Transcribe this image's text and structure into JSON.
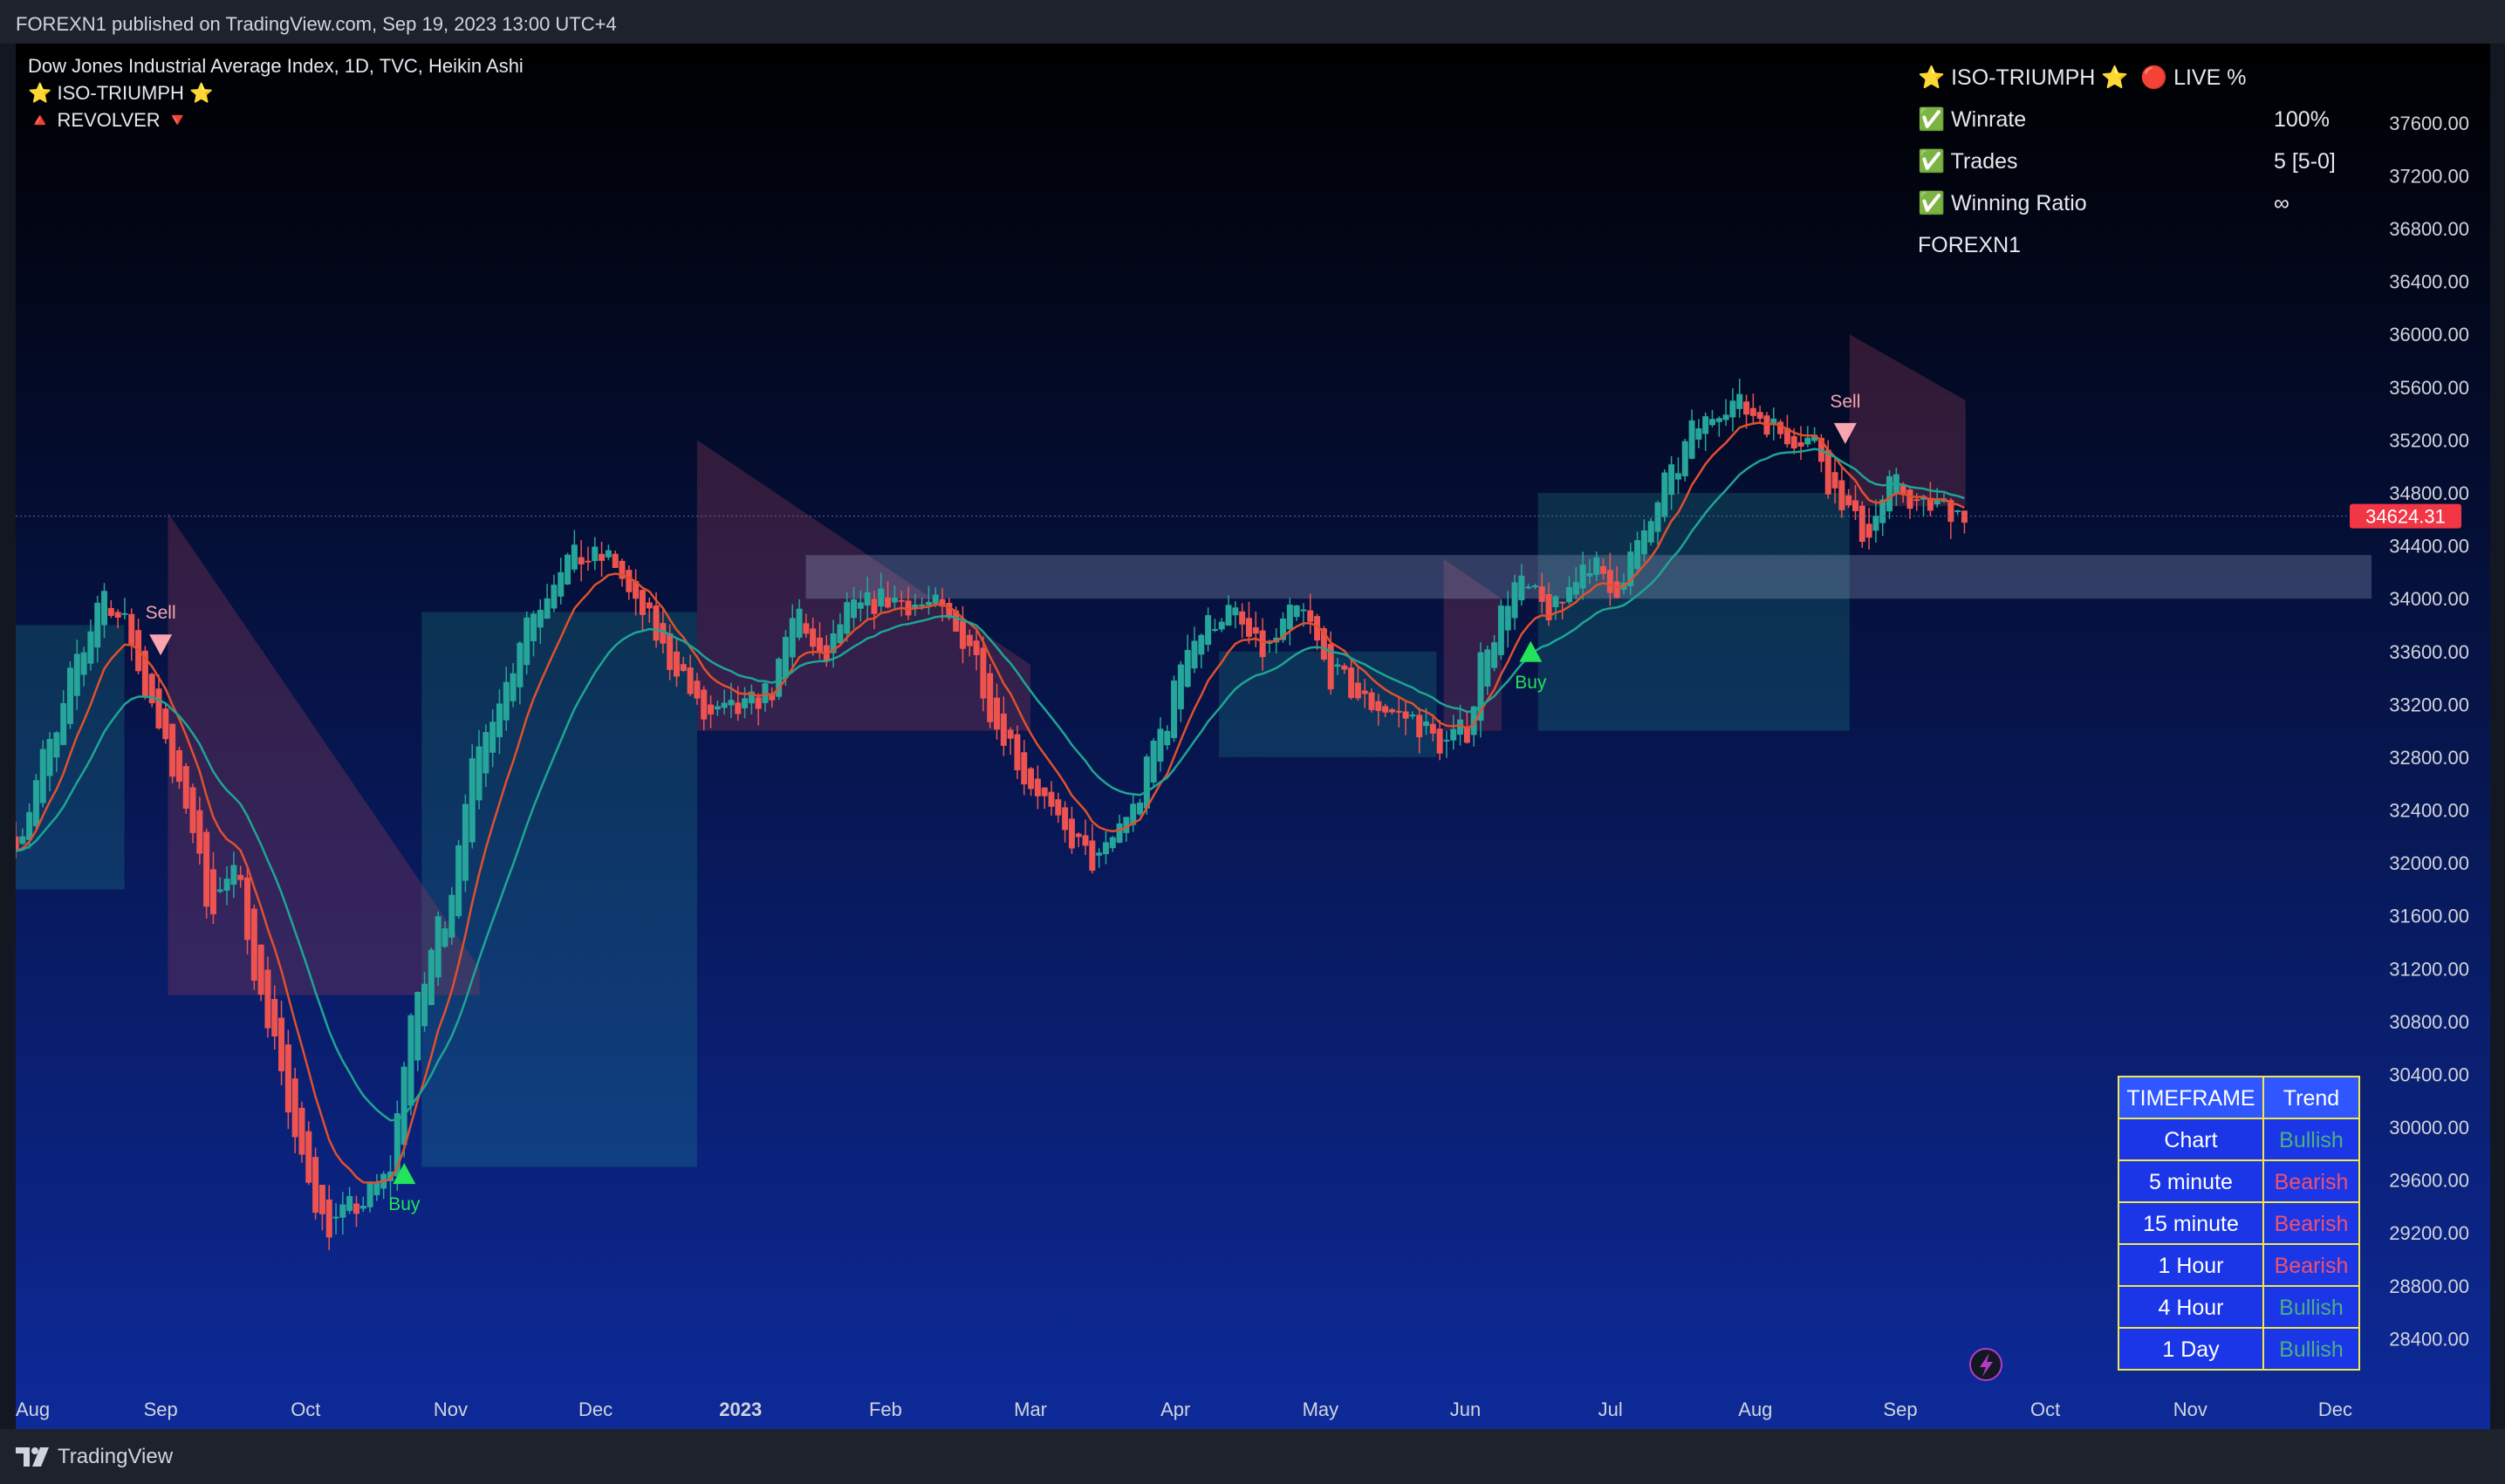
{
  "publish_line": "FOREXN1 published on TradingView.com, Sep 19, 2023 13:00 UTC+4",
  "legend": {
    "symbol_line": "Dow Jones Industrial Average Index, 1D, TVC, Heikin Ashi",
    "indicator1": "⭐ ISO-TRIUMPH ⭐",
    "indicator2": "🔺 REVOLVER 🔻"
  },
  "stats_panel": {
    "title_left": "⭐ ISO-TRIUMPH ⭐",
    "title_right": "🔴 LIVE %",
    "rows": [
      {
        "label": "✅ Winrate",
        "value": "100%"
      },
      {
        "label": "✅ Trades",
        "value": "5 [5-0]"
      },
      {
        "label": "✅ Winning Ratio",
        "value": "∞"
      }
    ],
    "footer": "FOREXN1"
  },
  "trend_table": {
    "headers": [
      "TIMEFRAME",
      "Trend"
    ],
    "rows": [
      {
        "timeframe": "Chart",
        "trend": "Bullish"
      },
      {
        "timeframe": "5 minute",
        "trend": "Bearish"
      },
      {
        "timeframe": "15 minute",
        "trend": "Bearish"
      },
      {
        "timeframe": "1 Hour",
        "trend": "Bearish"
      },
      {
        "timeframe": "4 Hour",
        "trend": "Bullish"
      },
      {
        "timeframe": "1 Day",
        "trend": "Bullish"
      }
    ]
  },
  "colors": {
    "bull": "#26a69a",
    "bear": "#ef5350",
    "buy_marker": "#22e35a",
    "sell_marker": "#f8a5b0",
    "fast_ma": "#e0502d",
    "slow_ma": "#1ea593",
    "bg_top": "#000000",
    "bg_bottom": "#0d2a99",
    "price_tag": "#f23645",
    "table_border": "#f0e74a",
    "table_fill": "#1b36e6",
    "table_header_fill": "#3057ff"
  },
  "brand": "TradingView",
  "chart_data": {
    "type": "candlestick",
    "title": "Dow Jones Industrial Average Index, 1D, TVC, Heikin Ashi",
    "x_axis": {
      "labels": [
        "Aug",
        "Sep",
        "Oct",
        "Nov",
        "Dec",
        "2023",
        "Feb",
        "Mar",
        "Apr",
        "May",
        "Jun",
        "Jul",
        "Aug",
        "Sep",
        "Oct",
        "Nov",
        "Dec"
      ],
      "label_months": [
        0,
        1,
        2,
        3,
        4,
        5,
        6,
        7,
        8,
        9,
        10,
        11,
        12,
        13,
        14,
        15,
        16
      ],
      "start": "2022-08-01",
      "end": "2023-12-01"
    },
    "y_axis": {
      "ticks": [
        28400,
        28800,
        29200,
        29600,
        30000,
        30400,
        30800,
        31200,
        31600,
        32000,
        32400,
        32800,
        33200,
        33600,
        34000,
        34400,
        34800,
        35200,
        35600,
        36000,
        36400,
        36800,
        37200,
        37600
      ],
      "range": [
        28000,
        38200
      ]
    },
    "last_price": "34624.31",
    "last_value": 34624.31,
    "price_path_months": [
      [
        0.0,
        32200
      ],
      [
        0.25,
        32900
      ],
      [
        0.45,
        33600
      ],
      [
        0.6,
        34050
      ],
      [
        0.75,
        33800
      ],
      [
        0.9,
        33300
      ],
      [
        1.15,
        32500
      ],
      [
        1.35,
        31700
      ],
      [
        1.5,
        31900
      ],
      [
        1.75,
        30800
      ],
      [
        1.95,
        29800
      ],
      [
        2.15,
        29250
      ],
      [
        2.35,
        29400
      ],
      [
        2.55,
        29600
      ],
      [
        2.75,
        30900
      ],
      [
        2.95,
        31600
      ],
      [
        3.15,
        32700
      ],
      [
        3.35,
        33300
      ],
      [
        3.55,
        33900
      ],
      [
        3.8,
        34300
      ],
      [
        4.1,
        34300
      ],
      [
        4.3,
        33900
      ],
      [
        4.55,
        33500
      ],
      [
        4.75,
        33100
      ],
      [
        5.0,
        33150
      ],
      [
        5.2,
        33300
      ],
      [
        5.4,
        33900
      ],
      [
        5.55,
        33500
      ],
      [
        5.75,
        33900
      ],
      [
        6.0,
        34000
      ],
      [
        6.3,
        33950
      ],
      [
        6.55,
        33700
      ],
      [
        6.8,
        33000
      ],
      [
        7.0,
        32600
      ],
      [
        7.25,
        32200
      ],
      [
        7.45,
        32000
      ],
      [
        7.7,
        32400
      ],
      [
        7.9,
        33000
      ],
      [
        8.1,
        33700
      ],
      [
        8.35,
        33900
      ],
      [
        8.6,
        33600
      ],
      [
        8.85,
        33900
      ],
      [
        9.1,
        33400
      ],
      [
        9.35,
        33200
      ],
      [
        9.6,
        33100
      ],
      [
        9.85,
        32900
      ],
      [
        10.0,
        33000
      ],
      [
        10.15,
        33700
      ],
      [
        10.35,
        34100
      ],
      [
        10.6,
        33900
      ],
      [
        10.85,
        34300
      ],
      [
        11.0,
        34050
      ],
      [
        11.2,
        34400
      ],
      [
        11.4,
        34900
      ],
      [
        11.6,
        35300
      ],
      [
        11.8,
        35500
      ],
      [
        12.0,
        35400
      ],
      [
        12.2,
        35250
      ],
      [
        12.4,
        35200
      ],
      [
        12.55,
        34800
      ],
      [
        12.75,
        34500
      ],
      [
        12.95,
        34850
      ],
      [
        13.15,
        34700
      ],
      [
        13.3,
        34700
      ],
      [
        13.45,
        34650
      ]
    ],
    "bands": {
      "bear_cloud": [
        {
          "x": [
            1.05,
            3.2
          ],
          "upper_start": 34650,
          "upper_end": 31200,
          "lower": 31000
        },
        {
          "x": [
            4.7,
            7.0
          ],
          "upper_start": 35200,
          "upper_end": 33500,
          "lower": 33000
        },
        {
          "x": [
            9.85,
            10.25
          ],
          "upper_start": 34300,
          "upper_end": 34000,
          "lower": 33000
        },
        {
          "x": [
            12.65,
            13.45
          ],
          "upper_start": 36000,
          "upper_end": 35500,
          "lower": 34700
        }
      ],
      "bull_cloud": [
        {
          "x": [
            0.0,
            0.75
          ],
          "upper": 33800,
          "lower": 31800
        },
        {
          "x": [
            2.8,
            4.7
          ],
          "upper": 33900,
          "lower": 29700
        },
        {
          "x": [
            8.3,
            9.8
          ],
          "upper": 33600,
          "lower": 32800
        },
        {
          "x": [
            10.5,
            12.65
          ],
          "upper": 34800,
          "lower": 33000
        }
      ]
    },
    "zone": {
      "low": 34000,
      "high": 34330,
      "x_start": 5.45,
      "x_end": 16.2
    },
    "markers": [
      {
        "type": "sell",
        "label": "Sell",
        "month": 1.0,
        "price": 33650
      },
      {
        "type": "buy",
        "label": "Buy",
        "month": 2.68,
        "price": 29650
      },
      {
        "type": "buy",
        "label": "Buy",
        "month": 10.45,
        "price": 33600
      },
      {
        "type": "sell",
        "label": "Sell",
        "month": 12.62,
        "price": 35250
      }
    ]
  }
}
